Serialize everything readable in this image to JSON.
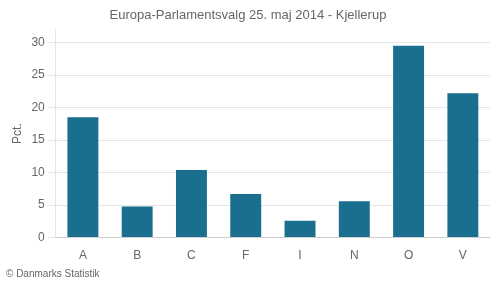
{
  "chart_data": {
    "type": "bar",
    "title": "Europa-Parlamentsvalg 25. maj 2014 - Kjellerup",
    "categories": [
      "A",
      "B",
      "C",
      "F",
      "I",
      "N",
      "O",
      "V"
    ],
    "values": [
      18.5,
      4.8,
      10.4,
      6.7,
      2.6,
      5.6,
      29.5,
      22.2
    ],
    "color": "#1b6f8e",
    "ylabel": "Pct.",
    "ylim": [
      0,
      32
    ],
    "yticks": [
      0,
      5,
      10,
      15,
      20,
      25,
      30
    ],
    "grid": true,
    "annotations": [
      "© Danmarks Statistik"
    ]
  }
}
